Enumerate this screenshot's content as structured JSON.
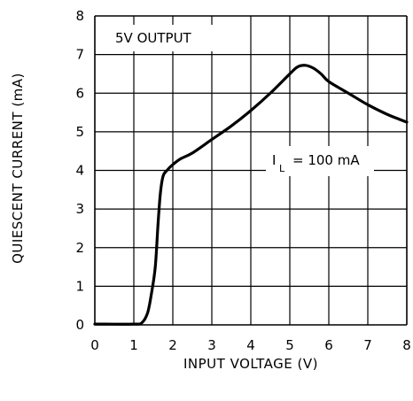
{
  "chart_data": {
    "type": "line",
    "xlabel": "INPUT VOLTAGE (V)",
    "ylabel": "QUIESCENT CURRENT (mA)",
    "xlim": [
      0,
      8
    ],
    "ylim": [
      0,
      8
    ],
    "x_ticks": [
      "0",
      "1",
      "2",
      "3",
      "4",
      "5",
      "6",
      "7",
      "8"
    ],
    "y_ticks": [
      "0",
      "1",
      "2",
      "3",
      "4",
      "5",
      "6",
      "7",
      "8"
    ],
    "grid": true,
    "annotations": {
      "output_label": "5V OUTPUT",
      "load_label_main": "I",
      "load_label_sub": "L",
      "load_label_value": "= 100 mA"
    },
    "series": [
      {
        "x": [
          0,
          1.0,
          1.2,
          1.35,
          1.45,
          1.55,
          1.62,
          1.68,
          1.75,
          1.85,
          2.0,
          2.2,
          2.5,
          3.0,
          3.5,
          4.0,
          4.5,
          5.0,
          5.2,
          5.4,
          5.6,
          5.8,
          6.0,
          6.5,
          7.0,
          7.5,
          8.0
        ],
        "y": [
          0.02,
          0.02,
          0.05,
          0.3,
          0.8,
          1.5,
          2.6,
          3.4,
          3.85,
          4.0,
          4.15,
          4.3,
          4.45,
          4.8,
          5.15,
          5.55,
          6.0,
          6.5,
          6.68,
          6.72,
          6.65,
          6.5,
          6.3,
          6.0,
          5.7,
          5.45,
          5.25
        ]
      }
    ]
  }
}
